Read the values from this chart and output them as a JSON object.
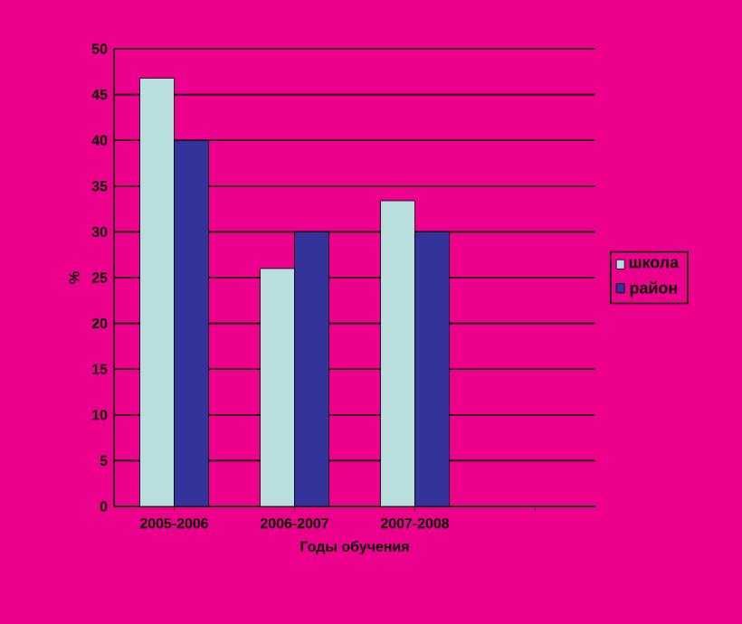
{
  "chart_data": {
    "type": "bar",
    "xlabel": "Годы обучения",
    "ylabel": "%",
    "categories": [
      "2005-2006",
      "2006-2007",
      "2007-2008",
      null
    ],
    "series": [
      {
        "name": "школа",
        "color": "#b8dede",
        "values": [
          46.8,
          26,
          33.4,
          null
        ]
      },
      {
        "name": "район",
        "color": "#333399",
        "values": [
          40,
          30,
          30,
          null
        ]
      }
    ],
    "ylim": [
      0,
      50
    ],
    "yticks": [
      0,
      5,
      10,
      15,
      20,
      25,
      30,
      35,
      40,
      45,
      50
    ],
    "grid": "y",
    "legend": "right"
  }
}
